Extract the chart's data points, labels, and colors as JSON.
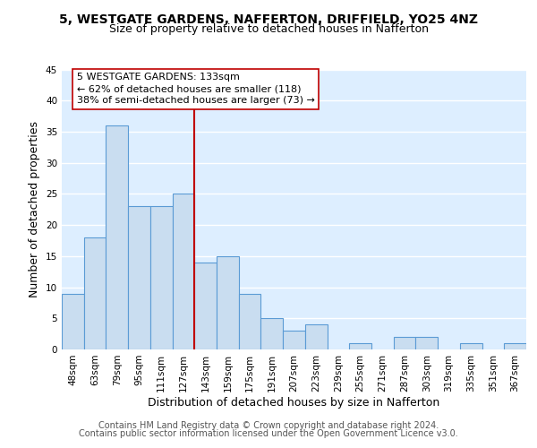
{
  "title": "5, WESTGATE GARDENS, NAFFERTON, DRIFFIELD, YO25 4NZ",
  "subtitle": "Size of property relative to detached houses in Nafferton",
  "xlabel": "Distribution of detached houses by size in Nafferton",
  "ylabel": "Number of detached properties",
  "bin_labels": [
    "48sqm",
    "63sqm",
    "79sqm",
    "95sqm",
    "111sqm",
    "127sqm",
    "143sqm",
    "159sqm",
    "175sqm",
    "191sqm",
    "207sqm",
    "223sqm",
    "239sqm",
    "255sqm",
    "271sqm",
    "287sqm",
    "303sqm",
    "319sqm",
    "335sqm",
    "351sqm",
    "367sqm"
  ],
  "bin_values": [
    9,
    18,
    36,
    23,
    23,
    25,
    14,
    15,
    9,
    5,
    3,
    4,
    0,
    1,
    0,
    2,
    2,
    0,
    1,
    0,
    1
  ],
  "bar_color": "#c9ddf0",
  "bar_edge_color": "#5b9bd5",
  "vline_x": 5.5,
  "vline_color": "#c00000",
  "annotation_line1": "5 WESTGATE GARDENS: 133sqm",
  "annotation_line2": "← 62% of detached houses are smaller (118)",
  "annotation_line3": "38% of semi-detached houses are larger (73) →",
  "annotation_box_color": "white",
  "annotation_box_edge_color": "#c00000",
  "ylim": [
    0,
    45
  ],
  "yticks": [
    0,
    5,
    10,
    15,
    20,
    25,
    30,
    35,
    40,
    45
  ],
  "footer_line1": "Contains HM Land Registry data © Crown copyright and database right 2024.",
  "footer_line2": "Contains public sector information licensed under the Open Government Licence v3.0.",
  "plot_bg_color": "#ddeeff",
  "fig_bg_color": "#ffffff",
  "grid_color": "#ffffff",
  "title_fontsize": 10,
  "subtitle_fontsize": 9,
  "axis_label_fontsize": 9,
  "tick_fontsize": 7.5,
  "annotation_fontsize": 8,
  "footer_fontsize": 7
}
